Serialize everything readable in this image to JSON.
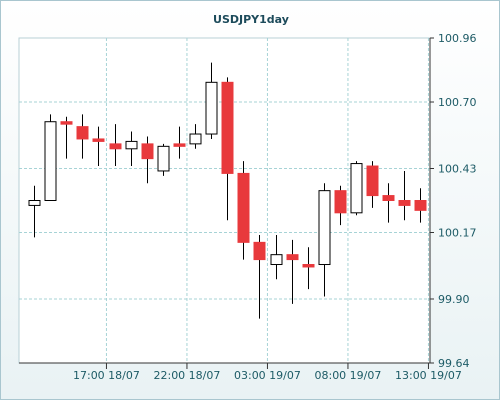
{
  "chart_data": {
    "type": "candlestick",
    "title": "USDJPY1day",
    "xlabel": "",
    "ylabel": "",
    "ylim": [
      99.64,
      100.96
    ],
    "yticks": [
      "100.96",
      "100.70",
      "100.43",
      "100.17",
      "99.90",
      "99.64"
    ],
    "xticks": [
      {
        "index": 4.5,
        "label": "17:00 18/07"
      },
      {
        "index": 9.5,
        "label": "22:00 18/07"
      },
      {
        "index": 14.5,
        "label": "03:00 19/07"
      },
      {
        "index": 19.5,
        "label": "08:00 19/07"
      },
      {
        "index": 24.5,
        "label": "13:00 19/07"
      }
    ],
    "grid": true,
    "colors": {
      "up_fill": "#ffffff",
      "up_border": "#000000",
      "down_fill": "#e8393c",
      "wick": "#000000",
      "grid": "#a7d3d6",
      "axis": "#333333"
    },
    "candles": [
      {
        "open": 100.28,
        "high": 100.36,
        "low": 100.15,
        "close": 100.3
      },
      {
        "open": 100.3,
        "high": 100.65,
        "low": 100.3,
        "close": 100.62
      },
      {
        "open": 100.62,
        "high": 100.64,
        "low": 100.47,
        "close": 100.61
      },
      {
        "open": 100.6,
        "high": 100.65,
        "low": 100.47,
        "close": 100.55
      },
      {
        "open": 100.55,
        "high": 100.6,
        "low": 100.44,
        "close": 100.54
      },
      {
        "open": 100.53,
        "high": 100.61,
        "low": 100.44,
        "close": 100.51
      },
      {
        "open": 100.51,
        "high": 100.58,
        "low": 100.44,
        "close": 100.54
      },
      {
        "open": 100.53,
        "high": 100.56,
        "low": 100.37,
        "close": 100.47
      },
      {
        "open": 100.42,
        "high": 100.53,
        "low": 100.4,
        "close": 100.52
      },
      {
        "open": 100.53,
        "high": 100.6,
        "low": 100.47,
        "close": 100.52
      },
      {
        "open": 100.53,
        "high": 100.61,
        "low": 100.51,
        "close": 100.57
      },
      {
        "open": 100.57,
        "high": 100.86,
        "low": 100.55,
        "close": 100.78
      },
      {
        "open": 100.78,
        "high": 100.8,
        "low": 100.22,
        "close": 100.41
      },
      {
        "open": 100.41,
        "high": 100.46,
        "low": 100.06,
        "close": 100.13
      },
      {
        "open": 100.13,
        "high": 100.16,
        "low": 99.82,
        "close": 100.06
      },
      {
        "open": 100.04,
        "high": 100.16,
        "low": 99.98,
        "close": 100.08
      },
      {
        "open": 100.08,
        "high": 100.14,
        "low": 99.88,
        "close": 100.06
      },
      {
        "open": 100.04,
        "high": 100.11,
        "low": 99.94,
        "close": 100.03
      },
      {
        "open": 100.04,
        "high": 100.37,
        "low": 99.91,
        "close": 100.34
      },
      {
        "open": 100.34,
        "high": 100.36,
        "low": 100.2,
        "close": 100.25
      },
      {
        "open": 100.25,
        "high": 100.46,
        "low": 100.24,
        "close": 100.45
      },
      {
        "open": 100.44,
        "high": 100.46,
        "low": 100.27,
        "close": 100.32
      },
      {
        "open": 100.32,
        "high": 100.37,
        "low": 100.21,
        "close": 100.3
      },
      {
        "open": 100.3,
        "high": 100.42,
        "low": 100.22,
        "close": 100.28
      },
      {
        "open": 100.3,
        "high": 100.35,
        "low": 100.21,
        "close": 100.26
      }
    ]
  }
}
